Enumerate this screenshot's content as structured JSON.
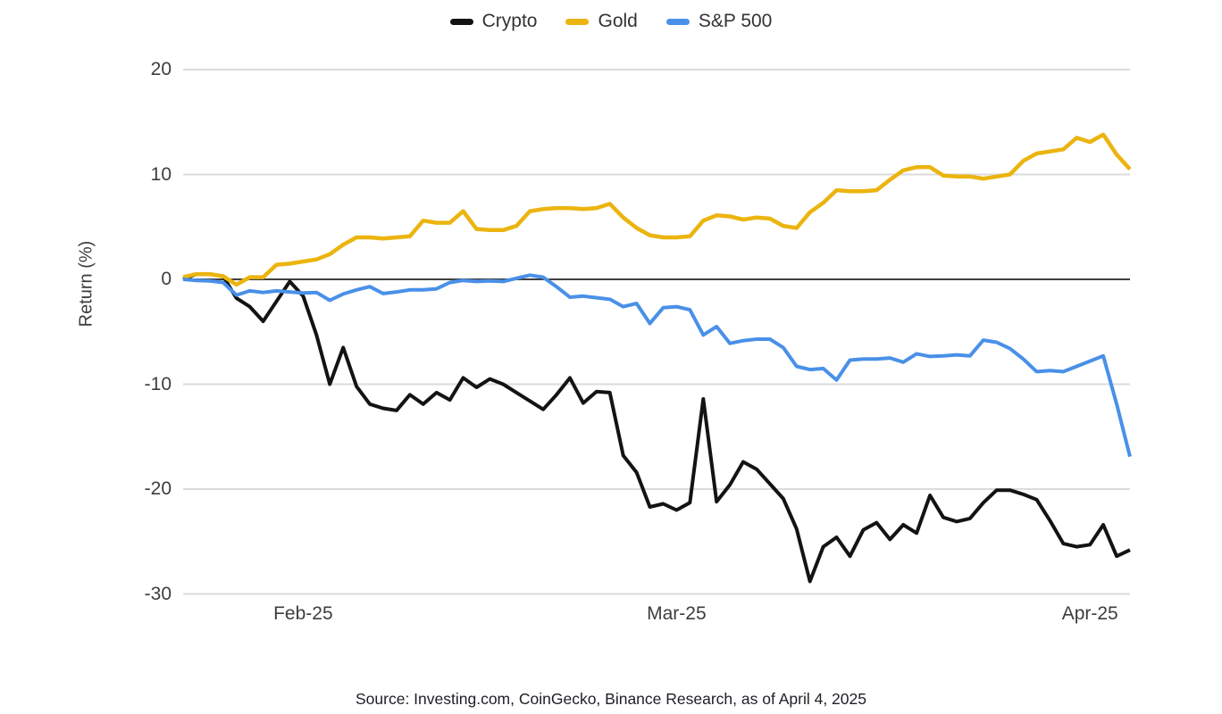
{
  "chart_data": {
    "type": "line",
    "title": "",
    "y_axis_label": "Return (%)",
    "y_ticks": [
      20,
      10,
      0,
      -10,
      -20,
      -30
    ],
    "ylim": [
      -32,
      22
    ],
    "x_unit": "day-index",
    "x_domain": [
      0,
      71
    ],
    "x_ticks": [
      {
        "label": "Feb-25",
        "day": 9
      },
      {
        "label": "Mar-25",
        "day": 37
      },
      {
        "label": "Apr-25",
        "day": 68
      }
    ],
    "grid": true,
    "legend_position": "top-center",
    "colors": {
      "background": "#FFFFFF",
      "gridline": "#DBDBDB",
      "zero_line": "#404040",
      "axis_text": "#3D3D3D",
      "crypto": "#131313",
      "gold": "#EBB40F",
      "sp500": "#4990E8"
    },
    "series": [
      {
        "name": "Crypto",
        "color": "#131313",
        "values": [
          0,
          0.5,
          0.5,
          0.3,
          -1.8,
          -2.6,
          -4,
          -2.1,
          -0.2,
          -1.6,
          -5.3,
          -10,
          -6.5,
          -10.2,
          -11.9,
          -12.3,
          -12.5,
          -11,
          -11.9,
          -10.8,
          -11.5,
          -9.4,
          -10.3,
          -9.5,
          -10,
          -10.8,
          -11.6,
          -12.4,
          -11,
          -9.4,
          -11.8,
          -10.7,
          -10.8,
          -16.8,
          -18.4,
          -21.7,
          -21.4,
          -22,
          -21.3,
          -11.4,
          -21.2,
          -19.6,
          -17.4,
          -18.1,
          -19.5,
          -20.9,
          -23.8,
          -28.8,
          -25.5,
          -24.6,
          -26.4,
          -23.9,
          -23.2,
          -24.8,
          -23.4,
          -24.2,
          -20.6,
          -22.7,
          -23.1,
          -22.8,
          -21.3,
          -20.1,
          -20.1,
          -20.5,
          -21,
          -23,
          -25.2,
          -25.5,
          -25.3,
          -23.4,
          -26.4,
          -25.8
        ]
      },
      {
        "name": "Gold",
        "color": "#EBB40F",
        "values": [
          0.2,
          0.5,
          0.5,
          0.3,
          -0.5,
          0.2,
          0.2,
          1.4,
          1.5,
          1.7,
          1.9,
          2.4,
          3.3,
          4,
          4,
          3.9,
          4,
          4.1,
          5.6,
          5.4,
          5.4,
          6.5,
          4.8,
          4.7,
          4.7,
          5.1,
          6.5,
          6.7,
          6.8,
          6.8,
          6.7,
          6.8,
          7.2,
          5.9,
          4.9,
          4.2,
          4,
          4,
          4.1,
          5.6,
          6.1,
          6,
          5.7,
          5.9,
          5.8,
          5.1,
          4.9,
          6.4,
          7.3,
          8.5,
          8.4,
          8.4,
          8.5,
          9.5,
          10.4,
          10.7,
          10.7,
          9.9,
          9.8,
          9.8,
          9.6,
          9.8,
          10,
          11.3,
          12,
          12.2,
          12.4,
          13.5,
          13.1,
          13.8,
          11.9,
          10.5
        ]
      },
      {
        "name": "S&P 500",
        "color": "#4990E8",
        "values": [
          0,
          -0.1,
          -0.15,
          -0.3,
          -1.5,
          -1.1,
          -1.25,
          -1.1,
          -1.2,
          -1.3,
          -1.25,
          -2,
          -1.4,
          -1,
          -0.7,
          -1.35,
          -1.2,
          -1,
          -1,
          -0.9,
          -0.3,
          -0.1,
          -0.2,
          -0.15,
          -0.2,
          0.1,
          0.4,
          0.2,
          -0.7,
          -1.7,
          -1.6,
          -1.75,
          -1.9,
          -2.6,
          -2.3,
          -4.2,
          -2.7,
          -2.6,
          -2.9,
          -5.3,
          -4.5,
          -6.1,
          -5.85,
          -5.7,
          -5.7,
          -6.5,
          -8.3,
          -8.6,
          -8.5,
          -9.6,
          -7.7,
          -7.6,
          -7.6,
          -7.5,
          -7.9,
          -7.1,
          -7.35,
          -7.3,
          -7.2,
          -7.3,
          -5.8,
          -6,
          -6.6,
          -7.6,
          -8.8,
          -8.7,
          -8.8,
          -8.3,
          -7.8,
          -7.3,
          -11.9,
          -16.9
        ]
      }
    ]
  },
  "footer": {
    "source_text": "Source: Investing.com, CoinGecko, Binance Research, as of April 4, 2025"
  }
}
